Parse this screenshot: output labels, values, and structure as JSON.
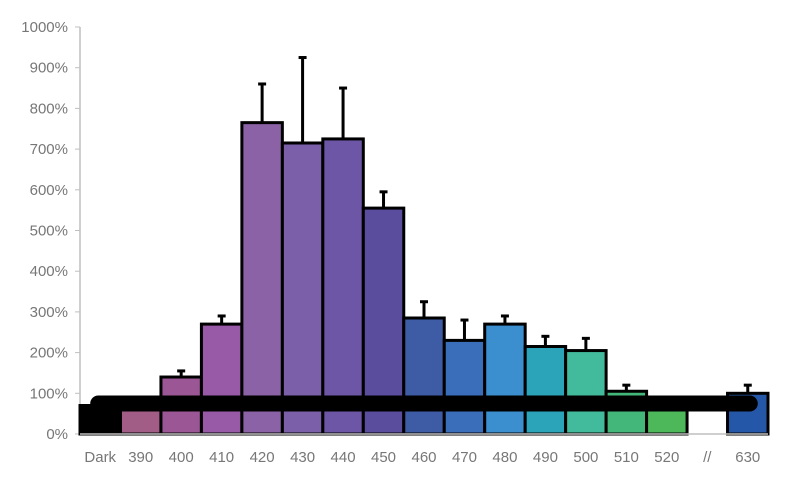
{
  "chart_data": {
    "type": "bar",
    "categories": [
      "Dark",
      "390",
      "400",
      "410",
      "420",
      "430",
      "440",
      "450",
      "460",
      "470",
      "480",
      "490",
      "500",
      "510",
      "520",
      "//",
      "630"
    ],
    "values": [
      70,
      80,
      140,
      270,
      765,
      715,
      725,
      555,
      285,
      230,
      270,
      215,
      205,
      105,
      80,
      null,
      100
    ],
    "error_upper": [
      70,
      90,
      155,
      290,
      860,
      925,
      850,
      595,
      325,
      280,
      290,
      240,
      235,
      120,
      90,
      null,
      120
    ],
    "bar_colors": [
      "#000000",
      "#a15d86",
      "#9b5795",
      "#985aa6",
      "#8b62a6",
      "#7b5fa8",
      "#6e56a7",
      "#5b4d9e",
      "#3e5ca5",
      "#3a6ebb",
      "#3b8fcf",
      "#2ba4b9",
      "#42bb9d",
      "#43b67a",
      "#4db85a",
      null,
      "#2557a8"
    ],
    "reference_line": {
      "value": 70
    },
    "ylim": [
      0,
      1000
    ],
    "ytick_values": [
      0,
      100,
      200,
      300,
      400,
      500,
      600,
      700,
      800,
      900,
      1000
    ],
    "ytick_labels": [
      "0%",
      "100%",
      "200%",
      "300%",
      "400%",
      "500%",
      "600%",
      "700%",
      "800%",
      "900%",
      "1000%"
    ],
    "title": "",
    "xlabel": "",
    "ylabel": "",
    "grid": false,
    "legend": "none"
  }
}
